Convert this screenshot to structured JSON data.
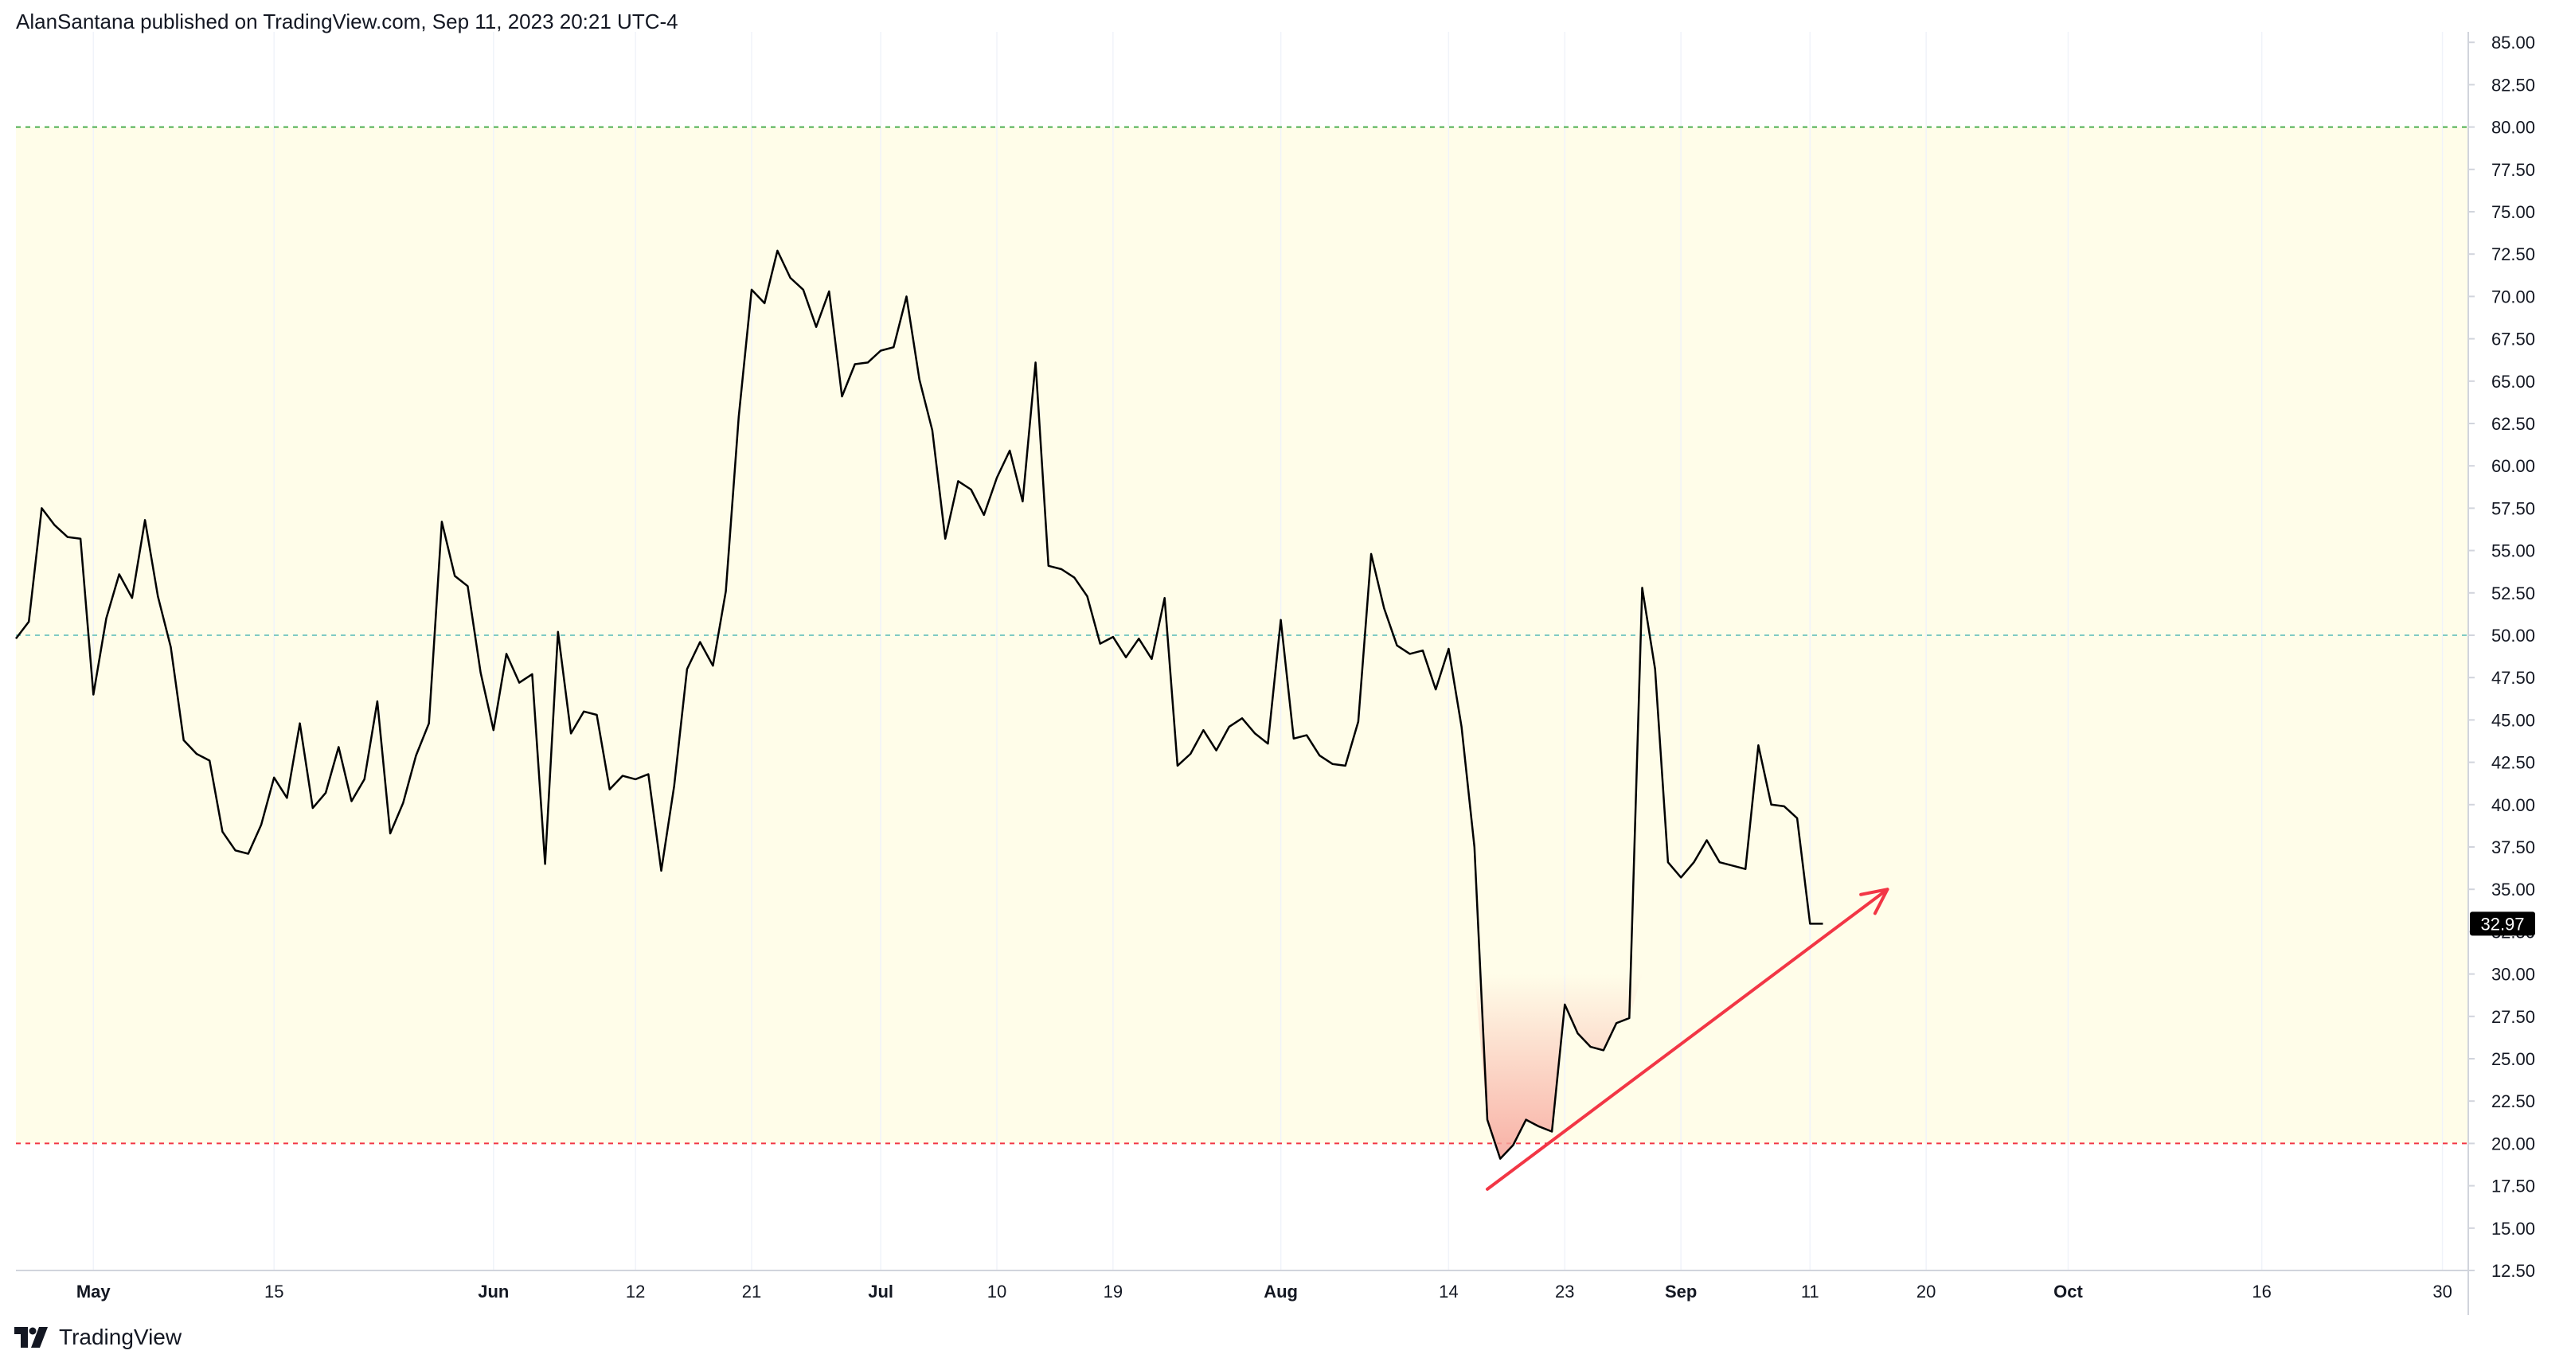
{
  "header": {
    "publisher_line": "AlanSantana published on TradingView.com, Sep 11, 2023 20:21 UTC-4"
  },
  "footer": {
    "brand_text": "TradingView",
    "logo_icon": "tradingview-logo-icon"
  },
  "colors": {
    "background": "#ffffff",
    "band_fill": "#fffde9",
    "line": "#000000",
    "overbought_line": "#4caf50",
    "middle_line": "#80cbc4",
    "oversold_line": "#f23645",
    "oversold_fill": "#f7a79d",
    "arrow": "#f23645",
    "grid": "#f0f3fa",
    "axis": "#d1d4dc",
    "last_value_bg": "#000000",
    "last_value_text": "#ffffff"
  },
  "chart_data": {
    "type": "line",
    "title": "",
    "xlabel": "",
    "ylabel": "",
    "ylim": [
      12.5,
      85
    ],
    "grid": true,
    "y_ticks": [
      "12.50",
      "15.00",
      "17.50",
      "20.00",
      "22.50",
      "25.00",
      "27.50",
      "30.00",
      "32.50",
      "35.00",
      "37.50",
      "40.00",
      "42.50",
      "45.00",
      "47.50",
      "50.00",
      "52.50",
      "55.00",
      "57.50",
      "60.00",
      "62.50",
      "65.00",
      "67.50",
      "70.00",
      "72.50",
      "75.00",
      "77.50",
      "80.00",
      "82.50",
      "85.00"
    ],
    "x_ticks": [
      {
        "label": "May",
        "date": "2023-05-01",
        "bold": true
      },
      {
        "label": "15",
        "date": "2023-05-15",
        "bold": false
      },
      {
        "label": "Jun",
        "date": "2023-06-01",
        "bold": true
      },
      {
        "label": "12",
        "date": "2023-06-12",
        "bold": false
      },
      {
        "label": "21",
        "date": "2023-06-21",
        "bold": false
      },
      {
        "label": "Jul",
        "date": "2023-07-01",
        "bold": true
      },
      {
        "label": "10",
        "date": "2023-07-10",
        "bold": false
      },
      {
        "label": "19",
        "date": "2023-07-19",
        "bold": false
      },
      {
        "label": "Aug",
        "date": "2023-08-01",
        "bold": true
      },
      {
        "label": "14",
        "date": "2023-08-14",
        "bold": false
      },
      {
        "label": "23",
        "date": "2023-08-23",
        "bold": false
      },
      {
        "label": "Sep",
        "date": "2023-09-01",
        "bold": true
      },
      {
        "label": "11",
        "date": "2023-09-11",
        "bold": false
      },
      {
        "label": "20",
        "date": "2023-09-20",
        "bold": false
      },
      {
        "label": "Oct",
        "date": "2023-10-01",
        "bold": true
      },
      {
        "label": "16",
        "date": "2023-10-16",
        "bold": false
      },
      {
        "label": "30",
        "date": "2023-10-30",
        "bold": false
      }
    ],
    "levels": {
      "overbought": 80,
      "middle": 50,
      "oversold": 20
    },
    "last_value_label": "32.97",
    "series": [
      {
        "values": [
          [
            "2023-04-25",
            49.8
          ],
          [
            "2023-04-26",
            50.8
          ],
          [
            "2023-04-27",
            57.5
          ],
          [
            "2023-04-28",
            56.5
          ],
          [
            "2023-04-29",
            55.8
          ],
          [
            "2023-04-30",
            55.7
          ],
          [
            "2023-05-01",
            46.5
          ],
          [
            "2023-05-02",
            51.0
          ],
          [
            "2023-05-03",
            53.6
          ],
          [
            "2023-05-04",
            52.2
          ],
          [
            "2023-05-05",
            56.8
          ],
          [
            "2023-05-06",
            52.3
          ],
          [
            "2023-05-07",
            49.3
          ],
          [
            "2023-05-08",
            43.8
          ],
          [
            "2023-05-09",
            43.0
          ],
          [
            "2023-05-10",
            42.6
          ],
          [
            "2023-05-11",
            38.4
          ],
          [
            "2023-05-12",
            37.3
          ],
          [
            "2023-05-13",
            37.1
          ],
          [
            "2023-05-14",
            38.8
          ],
          [
            "2023-05-15",
            41.6
          ],
          [
            "2023-05-16",
            40.4
          ],
          [
            "2023-05-17",
            44.8
          ],
          [
            "2023-05-18",
            39.8
          ],
          [
            "2023-05-19",
            40.7
          ],
          [
            "2023-05-20",
            43.4
          ],
          [
            "2023-05-21",
            40.2
          ],
          [
            "2023-05-22",
            41.5
          ],
          [
            "2023-05-23",
            46.1
          ],
          [
            "2023-05-24",
            38.3
          ],
          [
            "2023-05-25",
            40.1
          ],
          [
            "2023-05-26",
            42.9
          ],
          [
            "2023-05-27",
            44.8
          ],
          [
            "2023-05-28",
            56.7
          ],
          [
            "2023-05-29",
            53.5
          ],
          [
            "2023-05-30",
            52.9
          ],
          [
            "2023-05-31",
            47.8
          ],
          [
            "2023-06-01",
            44.4
          ],
          [
            "2023-06-02",
            48.9
          ],
          [
            "2023-06-03",
            47.2
          ],
          [
            "2023-06-04",
            47.7
          ],
          [
            "2023-06-05",
            36.5
          ],
          [
            "2023-06-06",
            50.2
          ],
          [
            "2023-06-07",
            44.2
          ],
          [
            "2023-06-08",
            45.5
          ],
          [
            "2023-06-09",
            45.3
          ],
          [
            "2023-06-10",
            40.9
          ],
          [
            "2023-06-11",
            41.7
          ],
          [
            "2023-06-12",
            41.5
          ],
          [
            "2023-06-13",
            41.8
          ],
          [
            "2023-06-14",
            36.1
          ],
          [
            "2023-06-15",
            41.1
          ],
          [
            "2023-06-16",
            48.0
          ],
          [
            "2023-06-17",
            49.6
          ],
          [
            "2023-06-18",
            48.2
          ],
          [
            "2023-06-19",
            52.6
          ],
          [
            "2023-06-20",
            62.9
          ],
          [
            "2023-06-21",
            70.4
          ],
          [
            "2023-06-22",
            69.6
          ],
          [
            "2023-06-23",
            72.7
          ],
          [
            "2023-06-24",
            71.1
          ],
          [
            "2023-06-25",
            70.4
          ],
          [
            "2023-06-26",
            68.2
          ],
          [
            "2023-06-27",
            70.3
          ],
          [
            "2023-06-28",
            64.1
          ],
          [
            "2023-06-29",
            66.0
          ],
          [
            "2023-06-30",
            66.1
          ],
          [
            "2023-07-01",
            66.8
          ],
          [
            "2023-07-02",
            67.0
          ],
          [
            "2023-07-03",
            70.0
          ],
          [
            "2023-07-04",
            65.1
          ],
          [
            "2023-07-05",
            62.1
          ],
          [
            "2023-07-06",
            55.7
          ],
          [
            "2023-07-07",
            59.1
          ],
          [
            "2023-07-08",
            58.6
          ],
          [
            "2023-07-09",
            57.1
          ],
          [
            "2023-07-10",
            59.3
          ],
          [
            "2023-07-11",
            60.9
          ],
          [
            "2023-07-12",
            57.9
          ],
          [
            "2023-07-13",
            66.1
          ],
          [
            "2023-07-14",
            54.1
          ],
          [
            "2023-07-15",
            53.9
          ],
          [
            "2023-07-16",
            53.4
          ],
          [
            "2023-07-17",
            52.3
          ],
          [
            "2023-07-18",
            49.5
          ],
          [
            "2023-07-19",
            49.9
          ],
          [
            "2023-07-20",
            48.7
          ],
          [
            "2023-07-21",
            49.8
          ],
          [
            "2023-07-22",
            48.6
          ],
          [
            "2023-07-23",
            52.2
          ],
          [
            "2023-07-24",
            42.3
          ],
          [
            "2023-07-25",
            43.0
          ],
          [
            "2023-07-26",
            44.4
          ],
          [
            "2023-07-27",
            43.2
          ],
          [
            "2023-07-28",
            44.6
          ],
          [
            "2023-07-29",
            45.1
          ],
          [
            "2023-07-30",
            44.2
          ],
          [
            "2023-07-31",
            43.6
          ],
          [
            "2023-08-01",
            50.9
          ],
          [
            "2023-08-02",
            43.9
          ],
          [
            "2023-08-03",
            44.1
          ],
          [
            "2023-08-04",
            42.9
          ],
          [
            "2023-08-05",
            42.4
          ],
          [
            "2023-08-06",
            42.3
          ],
          [
            "2023-08-07",
            44.9
          ],
          [
            "2023-08-08",
            54.8
          ],
          [
            "2023-08-09",
            51.6
          ],
          [
            "2023-08-10",
            49.4
          ],
          [
            "2023-08-11",
            48.9
          ],
          [
            "2023-08-12",
            49.1
          ],
          [
            "2023-08-13",
            46.8
          ],
          [
            "2023-08-14",
            49.2
          ],
          [
            "2023-08-15",
            44.6
          ],
          [
            "2023-08-16",
            37.5
          ],
          [
            "2023-08-17",
            21.4
          ],
          [
            "2023-08-18",
            19.1
          ],
          [
            "2023-08-19",
            19.9
          ],
          [
            "2023-08-20",
            21.4
          ],
          [
            "2023-08-21",
            21.0
          ],
          [
            "2023-08-22",
            20.7
          ],
          [
            "2023-08-23",
            28.2
          ],
          [
            "2023-08-24",
            26.5
          ],
          [
            "2023-08-25",
            25.7
          ],
          [
            "2023-08-26",
            25.5
          ],
          [
            "2023-08-27",
            27.1
          ],
          [
            "2023-08-28",
            27.4
          ],
          [
            "2023-08-29",
            52.8
          ],
          [
            "2023-08-30",
            48.0
          ],
          [
            "2023-08-31",
            36.6
          ],
          [
            "2023-09-01",
            35.7
          ],
          [
            "2023-09-02",
            36.6
          ],
          [
            "2023-09-03",
            37.9
          ],
          [
            "2023-09-04",
            36.6
          ],
          [
            "2023-09-05",
            36.4
          ],
          [
            "2023-09-06",
            36.2
          ],
          [
            "2023-09-07",
            43.5
          ],
          [
            "2023-09-08",
            40.0
          ],
          [
            "2023-09-09",
            39.9
          ],
          [
            "2023-09-10",
            39.2
          ],
          [
            "2023-09-11",
            32.97
          ],
          [
            "2023-09-12",
            32.97
          ]
        ]
      }
    ],
    "annotations": [
      {
        "type": "arrow",
        "from": [
          "2023-08-17",
          17.3
        ],
        "to": [
          "2023-09-17",
          35.0
        ]
      }
    ]
  }
}
